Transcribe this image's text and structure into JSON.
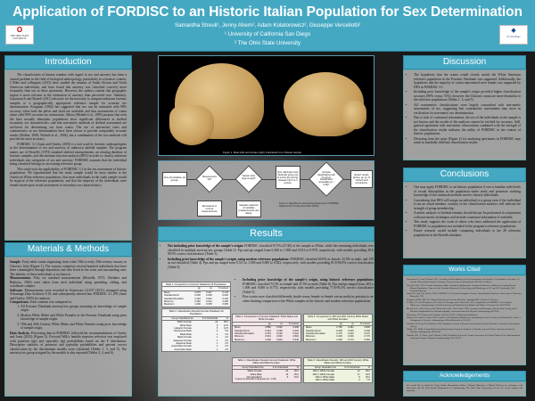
{
  "header": {
    "title": "Application of FORDISC to an Historic Italian Population for Sex Determination",
    "authors": "Samantha Streuli¹, Jenny Ahern², Adam Kolatorowicz², Giuseppe Vercellotti²",
    "affiliation1": "¹ University of California San Diego",
    "affiliation2": "² The Ohio State University",
    "logo_left": "THE OHIO STATE UNIVERSITY",
    "logo_right": "UC San Diego"
  },
  "colors": {
    "accent": "#45a8c3",
    "tableA": "#f4f4f4",
    "tableB": "#f3e6e8",
    "tableC": "#eef3e0"
  },
  "introduction": {
    "heading": "Introduction",
    "paragraphs": [
      "The classification of human remains with regard to sex and ancestry has been a central problem in the field of biological anthropology, particularly in a forensic context. L'Abbé and colleagues (2013) have studied the remains of South African and North American individuals, and have found that ancestry was classified correctly more frequently than sex in these specimens. However, the authors caution that geographic region is more relevant to the estimation of ancestry than perceived race. Similarly, Guyomarc'h and Bruzek (2011) advocate for the necessity to compare unknown forensic samples to a geographically appropriate reference sample for accurate sex determination. Krogman (1962) has suggested that sex can be estimated with 98% accuracy when both the pelvis and skull are available, and that assessments of crania alone yield 90% accurate sex estimations. Others (Meindl et al., 1985) propose that even the least sexually dimorphic populations show significant differences in skeletal secondary sex characteristics, and that non-metric methods of skeletal assessment are sufficient for determining sex from crania. The use of non-metric traits and craniometrics in sex determination have been shown to provide comparably accurate results (Walker, 2008; Walrath et al., 2004), but a combination of the two methods will provide the most accuracy.",
      "FORDISC 3.1 (Jantz and Ousley, 2005) is a tool used by forensic anthropologists in the determination of sex and ancestry of unknown skeletal samples. The program makes use of Howells' (1973) standard skeletal measurements, an existing database of forensic samples, and discriminant function analysis (DFA) in order to classify unknown individuals into categories of sex and ancestry. FORDISC assumes that the individual being classified belongs to an existing reference group.",
      "This study tests the applicability of FORDISC 3.1 in the sex assessment of historic populations. We hypothesized that the study sample would be most similar to the American White reference populations, that most individuals in the study sample would be atypical of the reference populations, and that the majority of the individuals were female based upon visual assessment of secondary sex characteristics."
    ]
  },
  "methods": {
    "heading": "Materials & Methods",
    "sample_label": "Sample.",
    "sample": "Forty adult crania originating from a late 19th to early 20th century ossuary in Chiavari, Italy (Figure 1). The ossuary comprises several hundred individuals that have been commingled through deposition and who lived in the town and surrounding area. The identity of these individuals is not known.",
    "measurements_label": "Measurements.",
    "measurements": "Fifty six standard measurements (Howells, 1973; Ubelaker and Buikstra, 1994) were taken from each individual using spreading, sliding, and coordinate calipers.",
    "software_label": "Software.",
    "software": "Measurements were recorded in Osteoware 2.4.037 (2011), managed using Advantage Data Architect 9.10, and subsequently entered into FORDISC 3.1.299 (Jantz and Ousley, 2005) for analysis.",
    "comparisons_label": "Comparisons.",
    "comparisons": "Each cranium was compared to:",
    "comparison_items": [
      "All Forensic Databank ancestry/sex groups assuming no knowledge of sample origin.",
      "Modern White Males and White Females in the Forensic Databank using prior knowledge of sample origin.",
      "19th and 20th Century White Males and White Females using prior knowledge of sample origin."
    ],
    "analysis_label": "Data Analysis.",
    "analysis": "Processing data in FORDISC followed the recommendations of Ousley and Jantz (2012) (Figure 2). Forward Wilk's lambda stepwise selection was employed with posterior (pp) and typicality (tp) probabilities based on the F distribution. Descriptive statistics of posterior and typicality probabilities and percent correct classification by the discriminant models were calculated (Tables 1, 3, and 5). The ancestry/sex group assigned by the models is also reported (Tables 2, 4, and 6)."
  },
  "figure1": {
    "caption": "Figure 1.  Male (left) and female (right) individuals from Chiavari sample."
  },
  "figure2": {
    "caption": "Figure 2.  Algorithm for processing specimens in FORDISC. Adapted from Ousley and Jantz (2012).",
    "n1": "Run all variables, all groups.",
    "d1": "Measurements OK?",
    "n2": "Remeasure or remove measurements.",
    "d2": "Sample sizes large enough?",
    "n3": "Stepwise selection of variables (measurements and ratios).",
    "n4": "Run. Eliminate most dissimilar group one at a time (pp and tp). Repeat until 2 to 4 groups.",
    "d3": "Compare classifications with % correct. Classification acceptable (tp > 0.05)?",
    "n5": "Report results (group, pp, tp, % correct) and conclusions.",
    "yes": "Yes",
    "no": "No"
  },
  "results": {
    "heading": "Results",
    "bullets": [
      {
        "lead": "Not including prior knowledge of the sample's origin:",
        "text": " FORDISC classified 67.5% (27/40) of the sample as White, while the remaining individuals were classified in multiple ancestry/sex groups (Table 2). Pps and tps ranged from 0.200 to 1.000 and 0.012 to 0.978, respectively, with models providing 49.6-90.5% correct classification (Table 1)."
      },
      {
        "lead": "Including prior knowledge of the sample's origin, using modern reference populations:",
        "text": " FORDISC classified 60.0% as female, 25.0% as male, and 15% as not classified (Table 4). Pps and tps ranged from 0.513 to 1.000 and 0.000 to 0.823, respectively, with models providing 81.8-94.9% correct classification (Table 3)."
      },
      {
        "lead": "Including prior knowledge of the sample's origin, using historic reference populations:",
        "text": " FORDISC classified 72.5% as female and 27.5% as male (Table 6). Pps and tps ranged from .403 to 1.000 and 0.000 to 0.773, respectively, with models providing 77.6-95.2% correct classification (Table 5)."
      },
      {
        "lead": "",
        "text": "Five crania were classified differently (male versus female or female versus male) as pertains to sex when limiting comparison to the White samples in the historic and modern reference populations."
      }
    ]
  },
  "tables": [
    {
      "title": "Table 1.  Comparison to Forensic Databank: All Populations.",
      "columns": [
        "",
        "pp",
        "tp",
        "% correct"
      ],
      "rows": [
        [
          "Mean",
          "0.679",
          "0.447",
          "0.723"
        ],
        [
          "Standard Error",
          "0.036",
          "0.048",
          "0.020"
        ],
        [
          "Standard Deviation",
          "0.229",
          "0.302",
          "0.125"
        ],
        [
          "Minimum",
          "0.200",
          "0.012",
          "0.496"
        ],
        [
          "Maximum",
          "1.000",
          "0.978",
          "0.905"
        ]
      ]
    },
    {
      "title": "Table 2.  Classification Results Forensic Databank: All Populations.",
      "columns": [
        "Group Classified Into",
        "# of Individuals",
        "%"
      ],
      "rows": [
        [
          "White Female",
          "22",
          "55.0"
        ],
        [
          "White Male",
          "5",
          "12.5"
        ],
        [
          "Hispanic Female",
          "5",
          "12.5"
        ],
        [
          "Vietnamese Male",
          "2",
          "5.0"
        ],
        [
          "Black Male",
          "1",
          "2.5"
        ],
        [
          "Black Female",
          "1",
          "2.5"
        ],
        [
          "Japanese Female",
          "1",
          "2.5"
        ],
        [
          "Japanese Male",
          "1",
          "2.5"
        ],
        [
          "Amerindian Female",
          "1",
          "2.5"
        ],
        [
          "Amerindian Male",
          "1",
          "2.5"
        ]
      ]
    },
    {
      "title": "Table 3.  Comparison to Forensic Databank: White Males and White Females.",
      "columns": [
        "",
        "pp",
        "tp",
        "% correct"
      ],
      "rows": [
        [
          "Mean",
          "0.880",
          "0.520",
          "0.908"
        ],
        [
          "Standard Error",
          "0.024",
          "0.038",
          "0.003"
        ],
        [
          "Standard Deviation",
          "0.151",
          "0.239",
          "0.022"
        ],
        [
          "Minimum",
          "0.513",
          "0.000",
          "0.818"
        ],
        [
          "Maximum",
          "1.000",
          "0.823",
          "0.949"
        ]
      ]
    },
    {
      "title": "Table 4.  Classification Results Forensic Databank: White Males and White Females.",
      "columns": [
        "Group Classified Into",
        "# of Individuals",
        "%"
      ],
      "rows": [
        [
          "White Female",
          "24",
          "60.0"
        ],
        [
          "White Male",
          "10",
          "25.0"
        ],
        [
          "Not Classified*",
          "6",
          "15.0"
        ]
      ],
      "note": "* Cases too dissimilar to all groups (tp < 0.05)."
    },
    {
      "title": "Table 5.  Comparison to 19th and 20th Century White Males and White Females.",
      "columns": [
        "",
        "pp",
        "tp",
        "% correct"
      ],
      "rows": [
        [
          "Mean",
          "0.795",
          "0.281",
          "0.890"
        ],
        [
          "Standard Error",
          "0.028",
          "0.035",
          "0.006"
        ],
        [
          "Standard Deviation",
          "0.175",
          "0.220",
          "0.037"
        ],
        [
          "Minimum",
          "0.403",
          "0.000",
          "0.776"
        ],
        [
          "Maximum",
          "1.000",
          "0.773",
          "0.952"
        ]
      ]
    },
    {
      "title": "Table 6.  Classification Results: 19th and 20th Century White Males and White Females.",
      "columns": [
        "Group Classified Into",
        "# of Individuals",
        "%"
      ],
      "rows": [
        [
          "19th C White Female",
          "12",
          "30.0"
        ],
        [
          "20th C White Female",
          "17",
          "42.5"
        ],
        [
          "20th C White Male",
          "8",
          "20.0"
        ],
        [
          "19th C White Male",
          "3",
          "7.5"
        ]
      ]
    }
  ],
  "discussion": {
    "heading": "Discussion",
    "bullets": [
      "The hypothesis that the crania would closely match the White American reference population in the Forensic Databank was supported. Additionally, the hypothesis that the majority of crania represented were female was supported by DFA in FORDISC 3.1.",
      "Including prior knowledge of the sample's origin provided higher classification accuracy (90% versus 72%); however, the Chiavari crania are more dissimilar to the reference populations (Tables 1, 3, and 5).",
      "All craniometric classifications were largely concordant with non-metric assessments of sex, suggesting that craniometric assessments may serve as verification for non-metric sex determination.",
      "Due to lack of contextual information, the sex of the individuals in the sample is not known and the results of the analyses cannot be verified for accuracy. Still, general agreement with non-metric observations combined with the strength of the classification results indicates the utility of FORDISC in the context of historic populations.",
      "Deviating from the steps (Figure 2) for analyzing specimens in FORDISC may result in markedly different classification results."
    ]
  },
  "conclusions": {
    "heading": "Conclusions",
    "bullets": [
      "One may apply FORDISC to an historic population if one is familiar with levels of sexual dimorphism in the population under study and possesses working knowledge of the statistical methods used to classify individuals.",
      "Considering that DFA will assign an individual to a group even if the individual is not an actual member, scrutiny of the classification statistics will indicate the strength of group membership.",
      "A metric analysis of skeletal remains should always be performed in conjunction with non-metric techniques and include contextual information if available.",
      "This study supports the work of others who have addressed the application of FORDISC to populations not included in the program's reference populations.",
      "Future research would include comparing individuals to the 28 reference populations in the Howells database."
    ]
  },
  "works_cited": {
    "heading": "Works Cited",
    "entries": [
      "Guyomarc'h, P. and J. Bruzek. 2011. Accuracy and Reliability in Sex Determination from Skulls: A Comparison of Fordisc 3.0 and the Discriminant Function Analysis. Forensic Science International 208:180.e1-180.e6.",
      "Howells, W.W. 1973. Cranial Variation in Man: A Study by Multivariate Analysis of Patterns of Difference Among Recent Human Populations. Papers of the Peabody Museum of Archaeology and Ethnology, vol 67, pp 259. Cambridge, MA: Peabody Museum.",
      "Jantz, R.L. and S.D. Ousley. 2005. FORDISC 3.0: Personal Computer Forensic Discriminant Functions. University of Tennessee, Knoxville, TN.",
      "Krogman, W.M. 1962. The Human Skeleton in Forensic Medicine. Springfield IL: Charles C. Thomas.",
      "L'Abbé, E.N., M. Kenyhercz, K.E. Stull, N. Keough, and S. Nawrocki. 2013. Application of FORDISC 3.0 to Explore Differences Among Crania of North American and South African Blacks and Whites. J Forensic Sci 58:1579-83.",
      "Meindl, R.S., C.O. Lovejoy, R.P. Mensforth, and L. Don Carlos. 1985. Accuracy and Direction of Error in the Sexing of the Skeleton: Implications for Paleodemography. American Journal of Physical Anthropology 68:79-85.",
      "Osteoware. 2011. Osteoware Software Version 2.4.037. Smithsonian Institution.",
      "Ousley, S.D. and R.L. Jantz. 2012. Fordisc 3 and Statistical Methods for Estimating Sex and Ancestry. In: Dirkmaat D, editor. A Companion to Forensic Anthropology. Wiley-Blackwell. p 311-329.",
      "Ubelaker, D.H. and J.E. Buikstra. 1994. Standards for Data Collection from Human Skeletal Remains. Arkansas Archeological Survey.",
      "Walker, P.L. 2008. Sexing Skulls Using Discriminant Function Analysis of Visually Assessed Traits. American Journal of Physical Anthropology 136:39-50.",
      "Walrath, D.E., P. Turner, and J. Bruzek. 2004. Reliability Test of the Visual Assessment of Cranial Traits for Sex Determination. American Journal of Physical Anthropology 125:132-137."
    ]
  },
  "acknowledgements": {
    "heading": "Acknowledgements",
    "text": "We would like to thank Dr. Chris Dudar (Repatriation Office, National Museum of Natural History) for assistance with Osteoware and Dr. Paul Sciulli (Department of Anthropology, The Ohio State University) for the use of his calipers and materials."
  }
}
